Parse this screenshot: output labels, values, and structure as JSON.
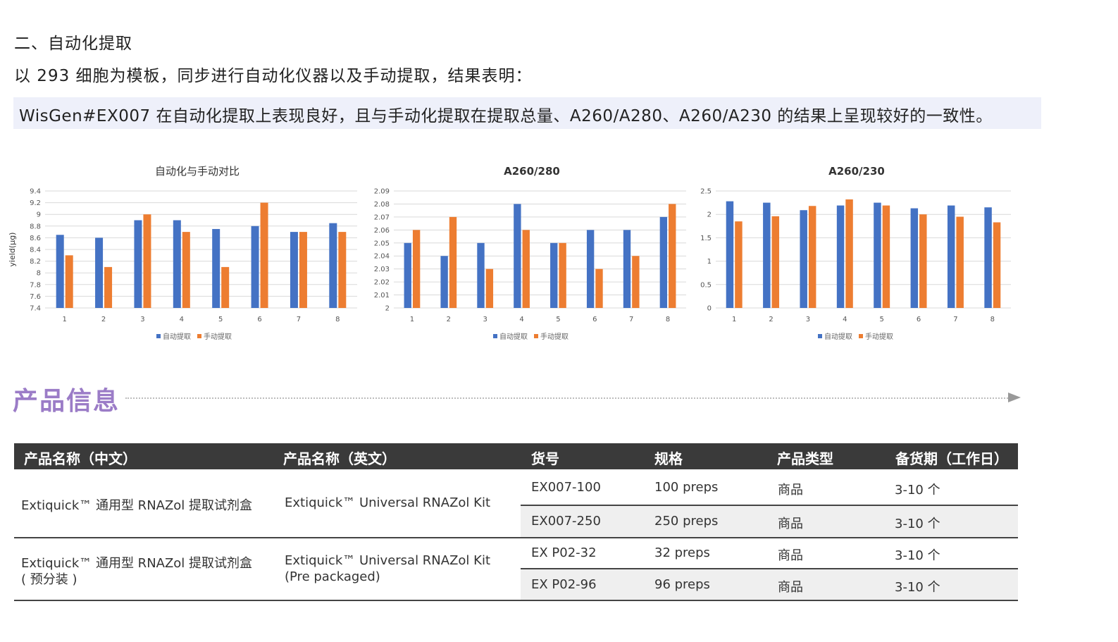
{
  "section": {
    "heading": "二、自动化提取",
    "intro": "以 293 细胞为模板，同步进行自动化仪器以及手动提取，结果表明：",
    "highlight": "WisGen#EX007 在自动化提取上表现良好，且与手动化提取在提取总量、A260/A280、A260/A230 的结果上呈现较好的一致性。"
  },
  "chart_data": [
    {
      "type": "bar",
      "title": "自动化与手动对比",
      "ylabel": "yield(μg)",
      "xlabel": "",
      "categories": [
        "1",
        "2",
        "3",
        "4",
        "5",
        "6",
        "7",
        "8"
      ],
      "ylim": [
        7.4,
        9.4
      ],
      "yticks": [
        "7.4",
        "7.6",
        "7.8",
        "8",
        "8.2",
        "8.4",
        "8.6",
        "8.8",
        "9",
        "9.2",
        "9.4"
      ],
      "series": [
        {
          "name": "自动提取",
          "values": [
            8.65,
            8.6,
            8.9,
            8.9,
            8.75,
            8.8,
            8.7,
            8.85
          ]
        },
        {
          "name": "手动提取",
          "values": [
            8.3,
            8.1,
            9.0,
            8.7,
            8.1,
            9.2,
            8.7,
            8.7
          ]
        }
      ],
      "legend": "bottom",
      "grid": true,
      "colors": [
        "#4472c4",
        "#ed7d31"
      ]
    },
    {
      "type": "bar",
      "title": "A260/280",
      "ylabel": "",
      "xlabel": "",
      "categories": [
        "1",
        "2",
        "3",
        "4",
        "5",
        "6",
        "7",
        "8"
      ],
      "ylim": [
        2,
        2.09
      ],
      "yticks": [
        "2",
        "2.01",
        "2.02",
        "2.03",
        "2.04",
        "2.05",
        "2.06",
        "2.07",
        "2.08",
        "2.09"
      ],
      "series": [
        {
          "name": "自动提取",
          "values": [
            2.05,
            2.04,
            2.05,
            2.08,
            2.05,
            2.06,
            2.06,
            2.07
          ]
        },
        {
          "name": "手动提取",
          "values": [
            2.06,
            2.07,
            2.03,
            2.06,
            2.05,
            2.03,
            2.04,
            2.08
          ]
        }
      ],
      "legend": "bottom",
      "grid": true,
      "colors": [
        "#4472c4",
        "#ed7d31"
      ]
    },
    {
      "type": "bar",
      "title": "A260/230",
      "ylabel": "",
      "xlabel": "",
      "categories": [
        "1",
        "2",
        "3",
        "4",
        "5",
        "6",
        "7",
        "8"
      ],
      "ylim": [
        0,
        2.5
      ],
      "yticks": [
        "0",
        "0.5",
        "1",
        "1.5",
        "2",
        "2.5"
      ],
      "series": [
        {
          "name": "自动提取",
          "values": [
            2.28,
            2.25,
            2.09,
            2.19,
            2.25,
            2.13,
            2.19,
            2.15
          ]
        },
        {
          "name": "手动提取",
          "values": [
            1.85,
            1.96,
            2.18,
            2.32,
            2.19,
            2.0,
            1.95,
            1.83
          ]
        }
      ],
      "legend": "bottom",
      "grid": true,
      "colors": [
        "#4472c4",
        "#ed7d31"
      ]
    }
  ],
  "product": {
    "title": "产品信息",
    "headers": [
      "产品名称（中文）",
      "产品名称（英文）",
      "货号",
      "规格",
      "产品类型",
      "备货期（工作日）"
    ],
    "groups": [
      {
        "name_cn": [
          "Extiquick™ 通用型 RNAZol 提取试剂盒"
        ],
        "name_en": [
          "Extiquick™ Universal RNAZol  Kit"
        ],
        "rows": [
          {
            "sku": "EX007-100",
            "spec": "100 preps",
            "type": "商品",
            "lead": "3-10 个"
          },
          {
            "sku": "EX007-250",
            "spec": "250 preps",
            "type": "商品",
            "lead": "3-10 个"
          }
        ]
      },
      {
        "name_cn": [
          "Extiquick™ 通用型 RNAZol 提取试剂盒",
          "( 预分装 )"
        ],
        "name_en": [
          "Extiquick™ Universal RNAZol Kit",
          "(Pre packaged)"
        ],
        "rows": [
          {
            "sku": "EX P02-32",
            "spec": "32 preps",
            "type": "商品",
            "lead": "3-10 个"
          },
          {
            "sku": "EX P02-96",
            "spec": "96 preps",
            "type": "商品",
            "lead": "3-10 个"
          }
        ]
      }
    ]
  }
}
